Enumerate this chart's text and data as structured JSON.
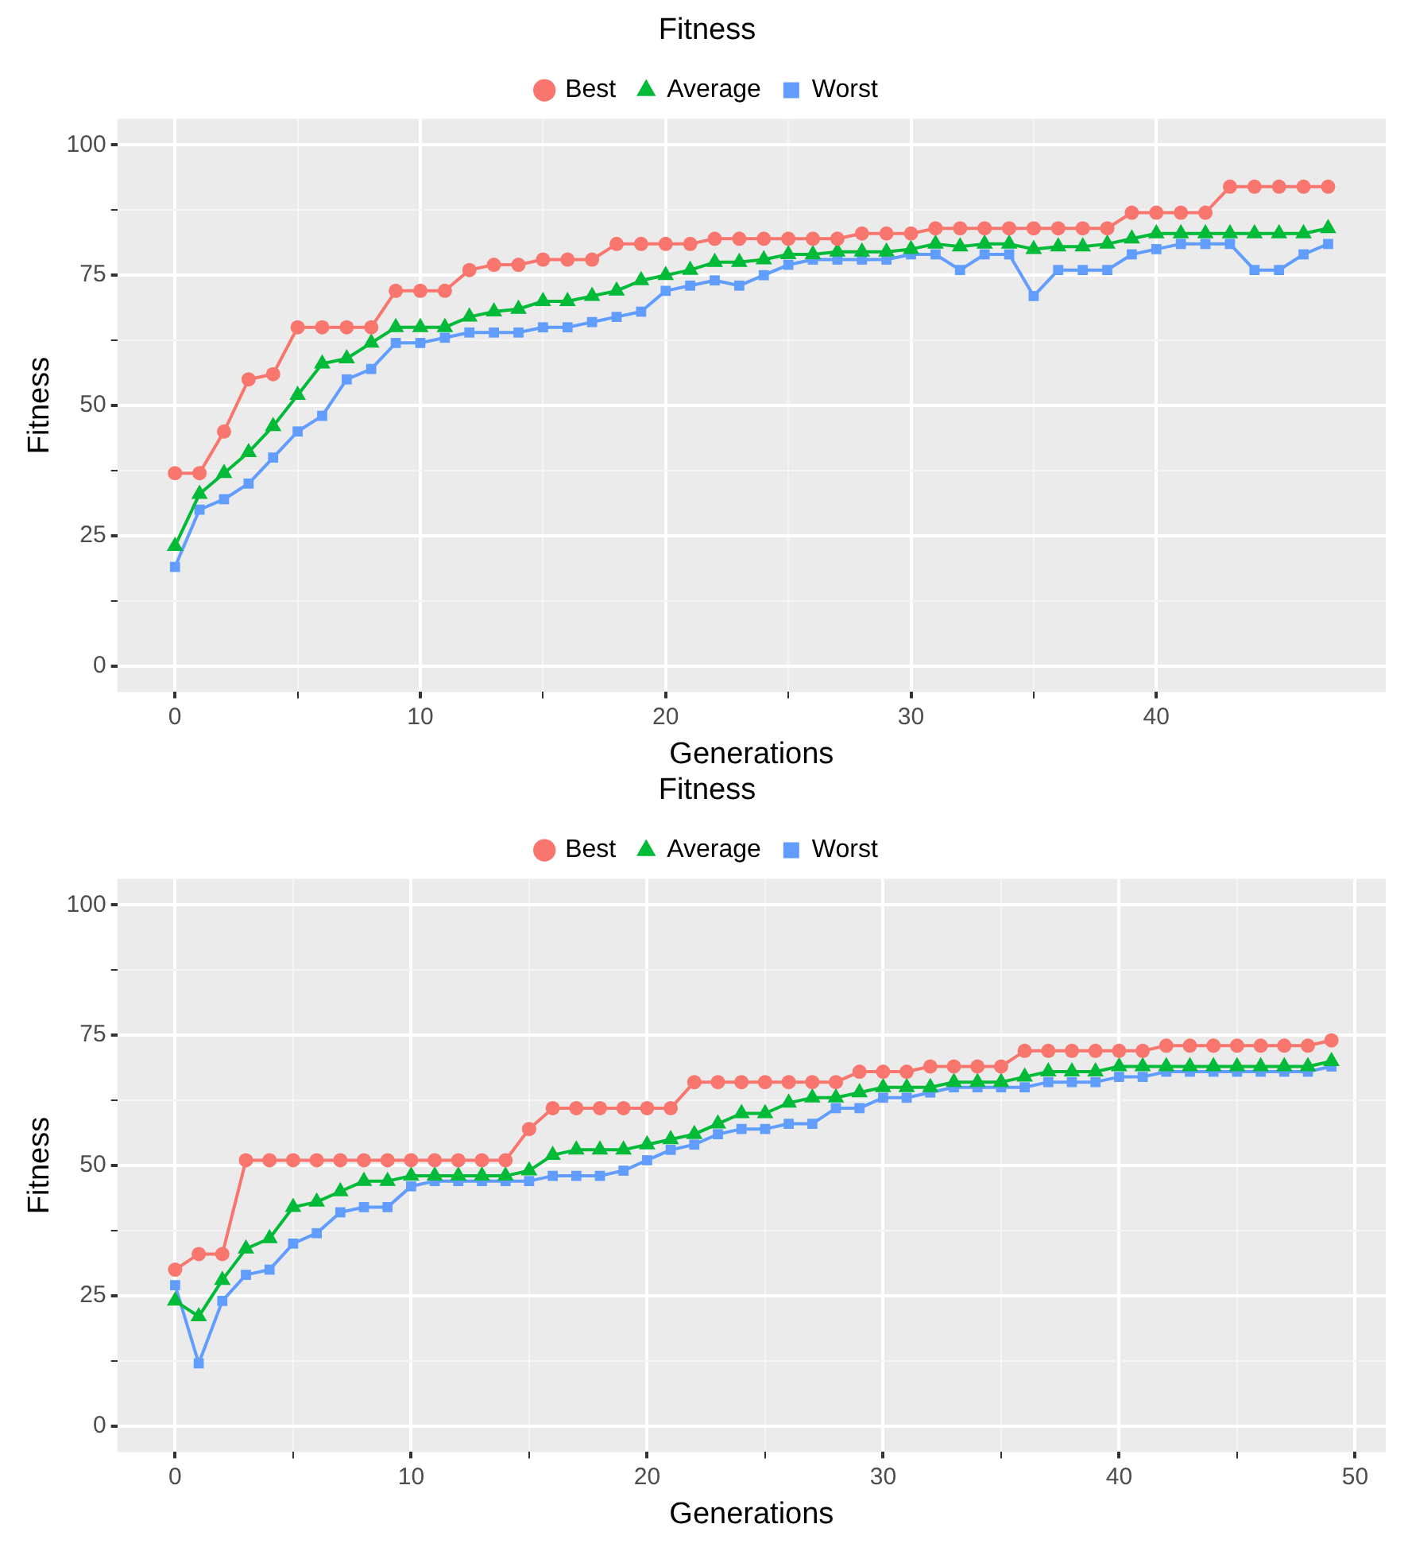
{
  "chart_data": [
    {
      "type": "line",
      "xlabel": "Generations",
      "ylabel": "Fitness",
      "legend_title": "Fitness",
      "legend": "top",
      "grid": true,
      "x": [
        0,
        1,
        2,
        3,
        4,
        5,
        6,
        7,
        8,
        9,
        10,
        11,
        12,
        13,
        14,
        15,
        16,
        17,
        18,
        19,
        20,
        21,
        22,
        23,
        24,
        25,
        26,
        27,
        28,
        29,
        30,
        31,
        32,
        33,
        34,
        35,
        36,
        37,
        38,
        39,
        40,
        41,
        42,
        43,
        44,
        45,
        46,
        47
      ],
      "xlim": [
        -2.35,
        49.35
      ],
      "xticks": [
        0,
        10,
        20,
        30,
        40
      ],
      "ylim": [
        -5,
        105
      ],
      "yticks": [
        0,
        25,
        50,
        75,
        100
      ],
      "series": [
        {
          "name": "Best",
          "color": "#f8766d",
          "marker": "circle",
          "values": [
            37,
            37,
            45,
            55,
            56,
            65,
            65,
            65,
            65,
            72,
            72,
            72,
            76,
            77,
            77,
            78,
            78,
            78,
            81,
            81,
            81,
            81,
            82,
            82,
            82,
            82,
            82,
            82,
            83,
            83,
            83,
            84,
            84,
            84,
            84,
            84,
            84,
            84,
            84,
            87,
            87,
            87,
            87,
            92,
            92,
            92,
            92,
            92
          ]
        },
        {
          "name": "Average",
          "color": "#00ba38",
          "marker": "triangle",
          "values": [
            23,
            33,
            37,
            41,
            46,
            52,
            58,
            59,
            62,
            65,
            65,
            65,
            67,
            68,
            68.5,
            70,
            70,
            71,
            72,
            74,
            75,
            76,
            77.5,
            77.5,
            78,
            79,
            79,
            79.5,
            79.5,
            79.5,
            80,
            81,
            80.5,
            81,
            81,
            80,
            80.5,
            80.5,
            81,
            82,
            83,
            83,
            83,
            83,
            83,
            83,
            83,
            84
          ]
        },
        {
          "name": "Worst",
          "color": "#619cff",
          "marker": "square",
          "values": [
            19,
            30,
            32,
            35,
            40,
            45,
            48,
            55,
            57,
            62,
            62,
            63,
            64,
            64,
            64,
            65,
            65,
            66,
            67,
            68,
            72,
            73,
            74,
            73,
            75,
            77,
            78,
            78,
            78,
            78,
            79,
            79,
            76,
            79,
            79,
            71,
            76,
            76,
            76,
            79,
            80,
            81,
            81,
            81,
            76,
            76,
            79,
            81
          ]
        }
      ]
    },
    {
      "type": "line",
      "xlabel": "Generations",
      "ylabel": "Fitness",
      "legend_title": "Fitness",
      "legend": "top",
      "grid": true,
      "x": [
        0,
        1,
        2,
        3,
        4,
        5,
        6,
        7,
        8,
        9,
        10,
        11,
        12,
        13,
        14,
        15,
        16,
        17,
        18,
        19,
        20,
        21,
        22,
        23,
        24,
        25,
        26,
        27,
        28,
        29,
        30,
        31,
        32,
        33,
        34,
        35,
        36,
        37,
        38,
        39,
        40,
        41,
        42,
        43,
        44,
        45,
        46,
        47,
        48,
        49
      ],
      "xlim": [
        -2.45,
        51.3
      ],
      "xticks": [
        0,
        10,
        20,
        30,
        40,
        50
      ],
      "ylim": [
        -5,
        105
      ],
      "yticks": [
        0,
        25,
        50,
        75,
        100
      ],
      "series": [
        {
          "name": "Best",
          "color": "#f8766d",
          "marker": "circle",
          "values": [
            30,
            33,
            33,
            51,
            51,
            51,
            51,
            51,
            51,
            51,
            51,
            51,
            51,
            51,
            51,
            57,
            61,
            61,
            61,
            61,
            61,
            61,
            66,
            66,
            66,
            66,
            66,
            66,
            66,
            68,
            68,
            68,
            69,
            69,
            69,
            69,
            72,
            72,
            72,
            72,
            72,
            72,
            73,
            73,
            73,
            73,
            73,
            73,
            73,
            74
          ]
        },
        {
          "name": "Average",
          "color": "#00ba38",
          "marker": "triangle",
          "values": [
            24,
            21,
            28,
            34,
            36,
            42,
            43,
            45,
            47,
            47,
            48,
            48,
            48,
            48,
            48,
            49,
            52,
            53,
            53,
            53,
            54,
            55,
            56,
            58,
            60,
            60,
            62,
            63,
            63,
            64,
            65,
            65,
            65,
            66,
            66,
            66,
            67,
            68,
            68,
            68,
            69,
            69,
            69,
            69,
            69,
            69,
            69,
            69,
            69,
            70
          ]
        },
        {
          "name": "Worst",
          "color": "#619cff",
          "marker": "square",
          "values": [
            27,
            12,
            24,
            29,
            30,
            35,
            37,
            41,
            42,
            42,
            46,
            47,
            47,
            47,
            47,
            47,
            48,
            48,
            48,
            49,
            51,
            53,
            54,
            56,
            57,
            57,
            58,
            58,
            61,
            61,
            63,
            63,
            64,
            65,
            65,
            65,
            65,
            66,
            66,
            66,
            67,
            67,
            68,
            68,
            68,
            68,
            68,
            68,
            68,
            69
          ]
        }
      ]
    }
  ]
}
